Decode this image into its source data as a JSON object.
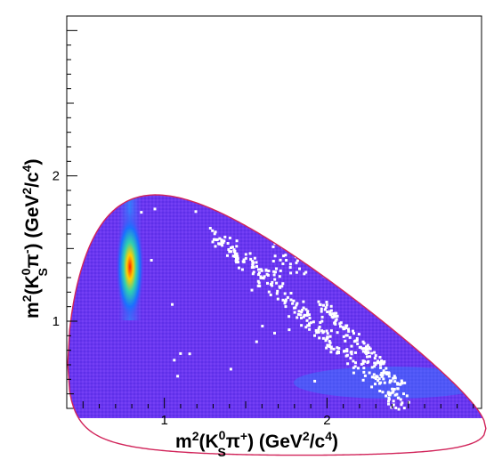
{
  "chart_data": {
    "type": "heatmap",
    "title": "",
    "xlabel": {
      "base": "m",
      "sup1": "2",
      "open": "(K",
      "sup_ks": "0",
      "sub_ks": "S",
      "pi": "π",
      "pi_charge": "+",
      "units_open": ") (GeV",
      "units_sup": "2",
      "units_mid": "/c",
      "units_sup2": "4",
      "units_close": ")"
    },
    "ylabel": {
      "base": "m",
      "sup1": "2",
      "open": "(K",
      "sup_ks": "0",
      "sub_ks": "S",
      "pi": "π",
      "pi_charge": "-",
      "units_open": ") (GeV",
      "units_sup": "2",
      "units_mid": "/c",
      "units_sup2": "4",
      "units_close": ")"
    },
    "xlim": [
      0.4,
      2.95
    ],
    "ylim": [
      0.4,
      3.1
    ],
    "x_major_ticks": [
      1,
      2
    ],
    "x_tick_labels": [
      "1",
      "2"
    ],
    "y_major_ticks": [
      1,
      2
    ],
    "y_tick_labels": [
      "1",
      "2"
    ],
    "grid": false,
    "legend": "none",
    "colors": {
      "background_fill": "#6a36f0",
      "boundary": "#d1245a",
      "empty_bins": "#ffffff",
      "high_density": "#ffff00",
      "peak": "#ff2000"
    },
    "resonance_bands": [
      {
        "axis": "x",
        "center": 0.8,
        "desc": "K*(892)+ vertical band"
      },
      {
        "axis": "y",
        "center": 0.8,
        "desc": "K*(892)- horizontal band"
      }
    ]
  }
}
